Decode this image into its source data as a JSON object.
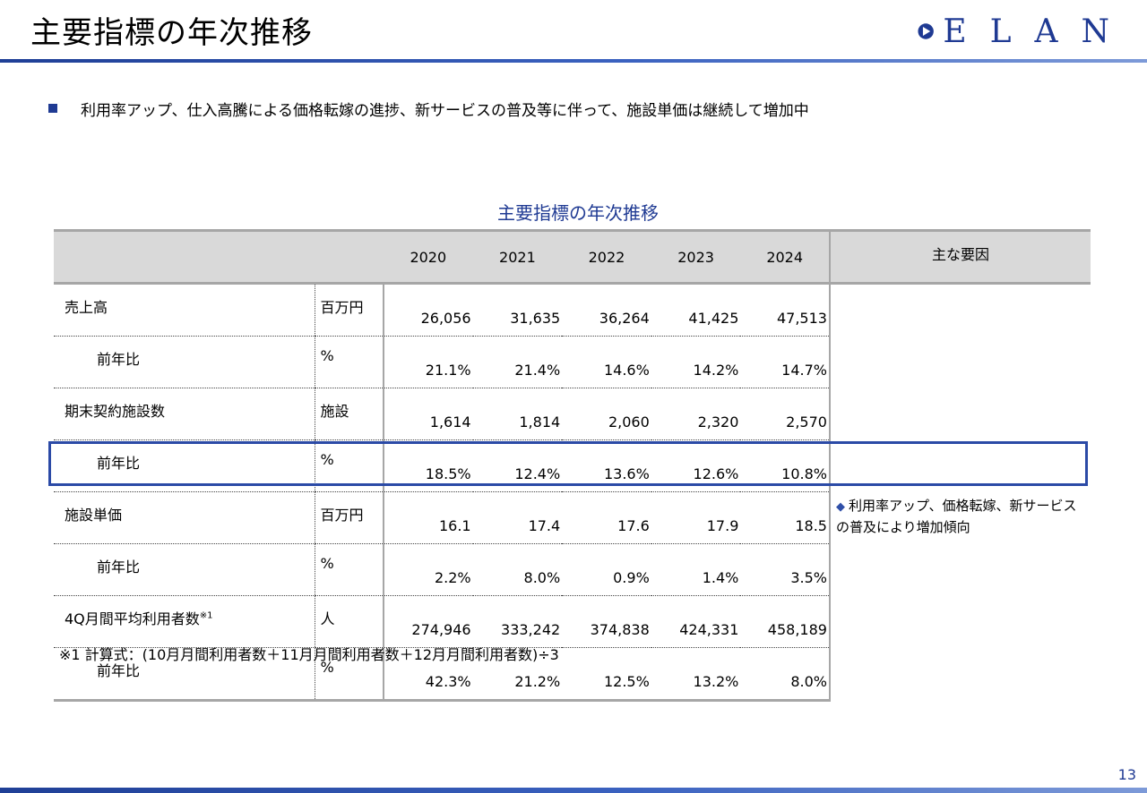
{
  "page": {
    "title": "主要指標の年次推移",
    "logo_text": "ELAN",
    "page_number": "13",
    "accent_color": "#1f3a93"
  },
  "bullet": "利用率アップ、仕入高騰による価格転嫁の進捗、新サービスの普及等に伴って、施設単価は継続して増加中",
  "table": {
    "title": "主要指標の年次推移",
    "years": [
      "2020",
      "2021",
      "2022",
      "2023",
      "2024"
    ],
    "factor_header": "主な要因",
    "rows": [
      {
        "label": "売上高",
        "unit": "百万円",
        "values": [
          "26,056",
          "31,635",
          "36,264",
          "41,425",
          "47,513"
        ]
      },
      {
        "label": "前年比",
        "unit": "%",
        "values": [
          "21.1%",
          "21.4%",
          "14.6%",
          "14.2%",
          "14.7%"
        ]
      },
      {
        "label": "期末契約施設数",
        "unit": "施設",
        "values": [
          "1,614",
          "1,814",
          "2,060",
          "2,320",
          "2,570"
        ]
      },
      {
        "label": "前年比",
        "unit": "%",
        "values": [
          "18.5%",
          "12.4%",
          "13.6%",
          "12.6%",
          "10.8%"
        ]
      },
      {
        "label": "施設単価",
        "unit": "百万円",
        "values": [
          "16.1",
          "17.4",
          "17.6",
          "17.9",
          "18.5"
        ],
        "factor": "利用率アップ、価格転嫁、新サービスの普及により増加傾向"
      },
      {
        "label": "前年比",
        "unit": "%",
        "values": [
          "2.2%",
          "8.0%",
          "0.9%",
          "1.4%",
          "3.5%"
        ]
      },
      {
        "label": "4Q月間平均利用者数",
        "label_note": "※1",
        "unit": "人",
        "values": [
          "274,946",
          "333,242",
          "374,838",
          "424,331",
          "458,189"
        ]
      },
      {
        "label": "前年比",
        "unit": "%",
        "values": [
          "42.3%",
          "21.2%",
          "12.5%",
          "13.2%",
          "8.0%"
        ]
      }
    ]
  },
  "footnote": "※1  計算式：(10月月間利用者数＋11月月間利用者数＋12月月間利用者数)÷3"
}
